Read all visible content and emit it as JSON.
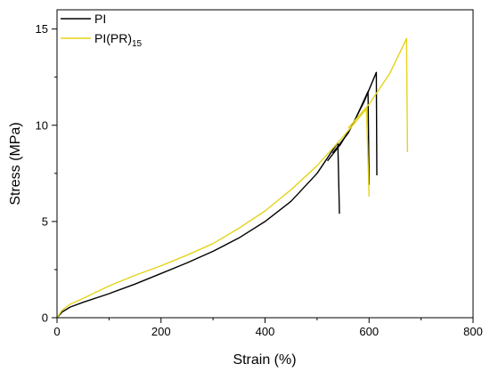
{
  "chart_data": {
    "type": "line",
    "xlabel": "Strain (%)",
    "ylabel": "Stress (MPa)",
    "xlim": [
      0,
      800
    ],
    "ylim": [
      0,
      16
    ],
    "x_ticks": [
      0,
      200,
      400,
      600,
      800
    ],
    "y_ticks": [
      0,
      5,
      10,
      15
    ],
    "grid": false,
    "legend_position": "top-left",
    "series": [
      {
        "name": "PI",
        "legend_main": "PI",
        "legend_sub": "",
        "color": "#000000",
        "segments": [
          [
            [
              0,
              0
            ],
            [
              10,
              0.3
            ],
            [
              25,
              0.55
            ],
            [
              50,
              0.8
            ],
            [
              100,
              1.25
            ],
            [
              150,
              1.75
            ],
            [
              200,
              2.3
            ],
            [
              250,
              2.85
            ],
            [
              300,
              3.45
            ],
            [
              350,
              4.15
            ],
            [
              400,
              5.0
            ],
            [
              450,
              6.05
            ],
            [
              500,
              7.5
            ],
            [
              540,
              9.1
            ],
            [
              543,
              5.4
            ]
          ],
          [
            [
              520,
              8.15
            ],
            [
              545,
              9.0
            ],
            [
              570,
              10.1
            ],
            [
              598,
              11.75
            ],
            [
              600,
              6.9
            ]
          ],
          [
            [
              530,
              8.55
            ],
            [
              560,
              9.6
            ],
            [
              590,
              11.2
            ],
            [
              614,
              12.75
            ],
            [
              615,
              7.4
            ]
          ]
        ]
      },
      {
        "name": "PI(PR)15",
        "legend_main": "PI(PR)",
        "legend_sub": "15",
        "color": "#e5d41a",
        "segments": [
          [
            [
              0,
              0
            ],
            [
              10,
              0.4
            ],
            [
              25,
              0.7
            ],
            [
              50,
              1.0
            ],
            [
              100,
              1.65
            ],
            [
              150,
              2.2
            ],
            [
              200,
              2.7
            ],
            [
              250,
              3.25
            ],
            [
              300,
              3.85
            ],
            [
              350,
              4.65
            ],
            [
              400,
              5.55
            ],
            [
              450,
              6.65
            ],
            [
              500,
              7.9
            ],
            [
              550,
              9.4
            ],
            [
              595,
              10.85
            ],
            [
              600,
              6.3
            ]
          ],
          [
            [
              560,
              9.85
            ],
            [
              600,
              11.1
            ],
            [
              640,
              12.7
            ],
            [
              672,
              14.5
            ],
            [
              674,
              8.6
            ]
          ]
        ]
      }
    ]
  }
}
